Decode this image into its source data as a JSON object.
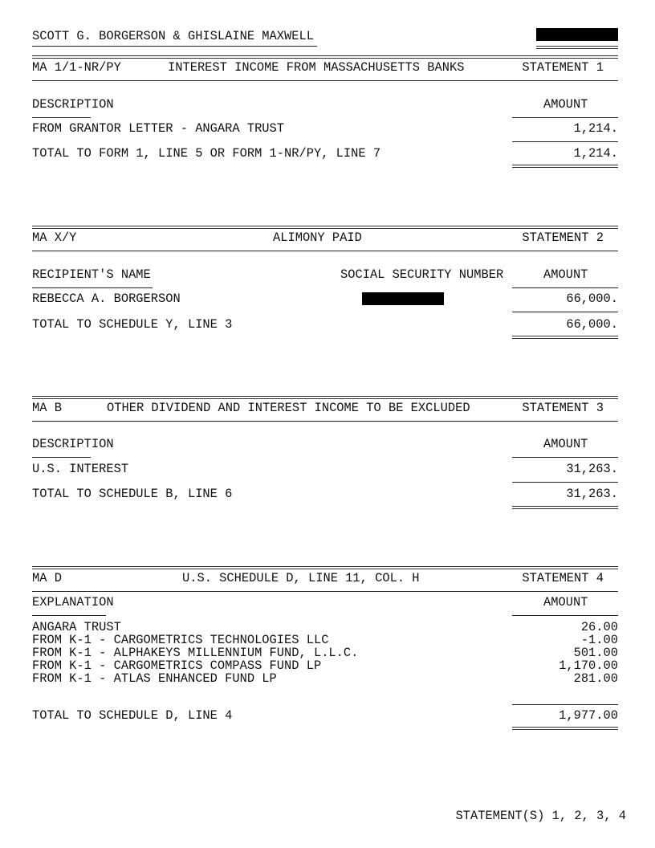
{
  "header": {
    "taxpayer_name": "SCOTT G. BORGERSON & GHISLAINE MAXWELL"
  },
  "statements": [
    {
      "form": "MA 1/1-NR/PY",
      "title": "INTEREST INCOME FROM MASSACHUSETTS BANKS",
      "statement": "STATEMENT 1",
      "col_left": "DESCRIPTION",
      "col_amount": "AMOUNT",
      "rows": [
        {
          "label": "FROM GRANTOR LETTER - ANGARA TRUST",
          "amount": "1,214."
        }
      ],
      "total_label": "TOTAL TO FORM 1, LINE 5 OR FORM 1-NR/PY, LINE 7",
      "total_amount": "1,214."
    },
    {
      "form": "MA X/Y",
      "title": "ALIMONY PAID",
      "statement": "STATEMENT 2",
      "col_left": "RECIPIENT'S NAME",
      "col_mid": "SOCIAL SECURITY NUMBER",
      "col_amount": "AMOUNT",
      "rows": [
        {
          "label": "REBECCA A. BORGERSON",
          "amount": "66,000."
        }
      ],
      "total_label": "TOTAL TO SCHEDULE Y, LINE 3",
      "total_amount": "66,000."
    },
    {
      "form": "MA B",
      "title": "OTHER DIVIDEND AND INTEREST INCOME TO BE EXCLUDED",
      "statement": "STATEMENT 3",
      "col_left": "DESCRIPTION",
      "col_amount": "AMOUNT",
      "rows": [
        {
          "label": "U.S. INTEREST",
          "amount": "31,263."
        }
      ],
      "total_label": "TOTAL TO SCHEDULE B, LINE 6",
      "total_amount": "31,263."
    },
    {
      "form": "MA D",
      "title": "U.S. SCHEDULE D, LINE 11, COL. H",
      "statement": "STATEMENT 4",
      "col_left": "EXPLANATION",
      "col_amount": "AMOUNT",
      "rows": [
        {
          "label": "ANGARA TRUST",
          "amount": "26.00"
        },
        {
          "label": "FROM K-1 - CARGOMETRICS TECHNOLOGIES LLC",
          "amount": "-1.00"
        },
        {
          "label": "FROM K-1 - ALPHAKEYS MILLENNIUM FUND, L.L.C.",
          "amount": "501.00"
        },
        {
          "label": "FROM K-1 - CARGOMETRICS COMPASS FUND LP",
          "amount": "1,170.00"
        },
        {
          "label": "FROM K-1 - ATLAS ENHANCED FUND LP",
          "amount": "281.00"
        }
      ],
      "total_label": "TOTAL TO SCHEDULE D, LINE 4",
      "total_amount": "1,977.00"
    }
  ],
  "footer": {
    "statements_ref": "STATEMENT(S) 1, 2, 3, 4"
  }
}
